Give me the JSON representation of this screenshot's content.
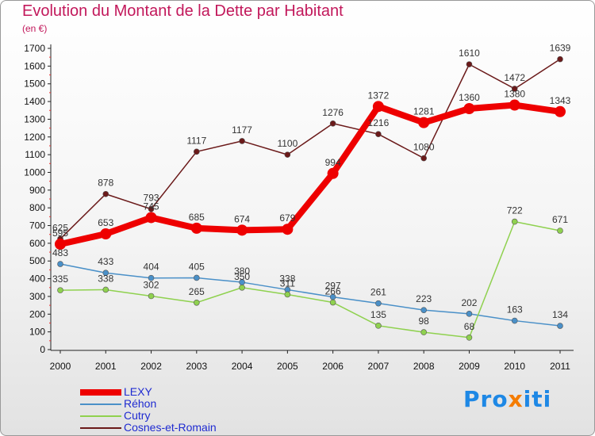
{
  "chart_data": {
    "type": "line",
    "title": "Evolution du Montant de la Dette par Habitant",
    "subtitle": "(en €)",
    "x": [
      "2000",
      "2001",
      "2002",
      "2003",
      "2004",
      "2005",
      "2006",
      "2007",
      "2008",
      "2009",
      "2010",
      "2011"
    ],
    "ylim": [
      0,
      1700
    ],
    "yticks": [
      0,
      100,
      200,
      300,
      400,
      500,
      600,
      700,
      800,
      900,
      1000,
      1100,
      1200,
      1300,
      1400,
      1500,
      1600,
      1700
    ],
    "grid": false,
    "legend_position": "bottom-left",
    "series": [
      {
        "name": "LEXY",
        "color": "#ee0000",
        "values": [
          595,
          653,
          745,
          685,
          674,
          679,
          994,
          1372,
          1281,
          1360,
          1380,
          1343
        ]
      },
      {
        "name": "Réhon",
        "color": "#4a90c8",
        "values": [
          483,
          433,
          404,
          405,
          380,
          338,
          297,
          261,
          223,
          202,
          163,
          134
        ]
      },
      {
        "name": "Cutry",
        "color": "#8fd14f",
        "values": [
          335,
          338,
          302,
          265,
          350,
          311,
          266,
          135,
          98,
          68,
          722,
          671
        ]
      },
      {
        "name": "Cosnes-et-Romain",
        "color": "#6b1a1a",
        "values": [
          625,
          878,
          793,
          1117,
          1177,
          1100,
          1276,
          1216,
          1080,
          1610,
          1472,
          1639
        ]
      }
    ]
  },
  "logo": {
    "part1": "Pro",
    "part2": "x",
    "part3": "iti"
  }
}
